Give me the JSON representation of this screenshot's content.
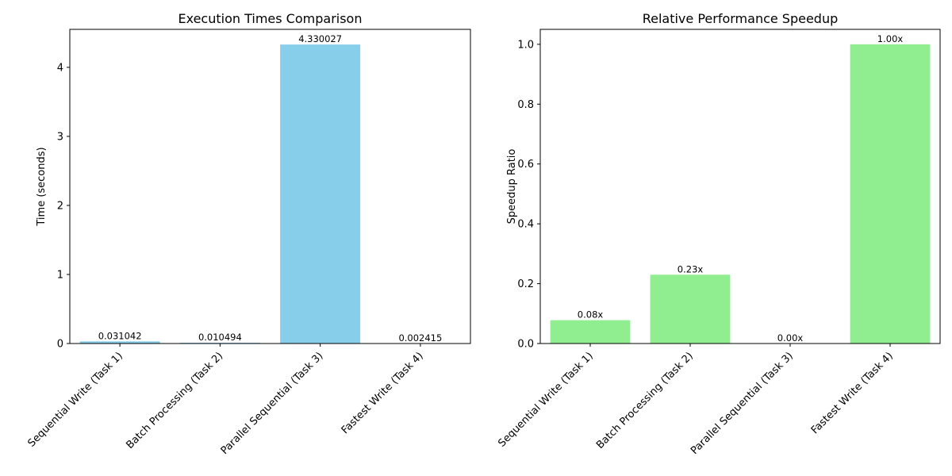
{
  "chart_data": [
    {
      "type": "bar",
      "title": "Execution Times Comparison",
      "xlabel": "",
      "ylabel": "Time (seconds)",
      "categories": [
        "Sequential Write (Task 1)",
        "Batch Processing (Task 2)",
        "Parallel Sequential (Task 3)",
        "Fastest Write (Task 4)"
      ],
      "values": [
        0.031042,
        0.010494,
        4.330027,
        0.002415
      ],
      "data_labels": [
        "0.031042",
        "0.010494",
        "4.330027",
        "0.002415"
      ],
      "ylim": [
        0,
        4.55
      ],
      "yticks": [
        0,
        1,
        2,
        3,
        4
      ],
      "ytick_labels": [
        "0",
        "1",
        "2",
        "3",
        "4"
      ],
      "color": "#87ceeb",
      "grid": false
    },
    {
      "type": "bar",
      "title": "Relative Performance Speedup",
      "xlabel": "",
      "ylabel": "Speedup Ratio",
      "categories": [
        "Sequential Write (Task 1)",
        "Batch Processing (Task 2)",
        "Parallel Sequential (Task 3)",
        "Fastest Write (Task 4)"
      ],
      "values": [
        0.078,
        0.23,
        0.00056,
        1.0
      ],
      "data_labels": [
        "0.08x",
        "0.23x",
        "0.00x",
        "1.00x"
      ],
      "ylim": [
        0,
        1.05
      ],
      "yticks": [
        0,
        0.2,
        0.4,
        0.6,
        0.8,
        1.0
      ],
      "ytick_labels": [
        "0.0",
        "0.2",
        "0.4",
        "0.6",
        "0.8",
        "1.0"
      ],
      "color": "#90ee90",
      "grid": false
    }
  ]
}
